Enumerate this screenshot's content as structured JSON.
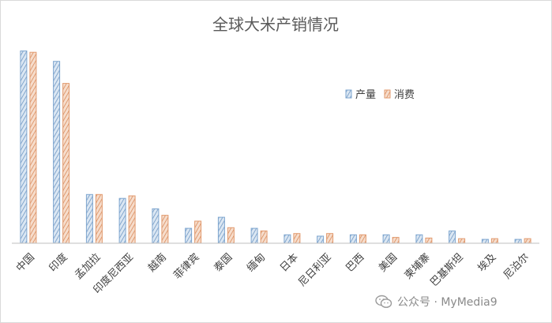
{
  "chart_data": {
    "type": "bar",
    "title": "全球大米产销情况",
    "xlabel": "",
    "ylabel": "",
    "ylim": [
      0,
      155
    ],
    "grid": false,
    "legend_position": "top-right",
    "categories": [
      "中国",
      "印度",
      "孟加拉",
      "印度尼西亚",
      "越南",
      "菲律宾",
      "泰国",
      "缅甸",
      "日本",
      "尼日利亚",
      "巴西",
      "美国",
      "柬埔寨",
      "巴基斯坦",
      "埃及",
      "尼泊尔"
    ],
    "series": [
      {
        "name": "产量",
        "color": "#7ea6cf",
        "values": [
          148,
          140,
          37.5,
          34.5,
          26.5,
          11.5,
          20,
          11.5,
          6.5,
          5.5,
          6.5,
          6.5,
          6.5,
          9.5,
          3,
          3
        ]
      },
      {
        "name": "消费",
        "color": "#e29a6e",
        "values": [
          147,
          123,
          37.5,
          36.5,
          21.5,
          17,
          12,
          9.5,
          7.5,
          7.5,
          6.5,
          4.5,
          4,
          3.5,
          3.5,
          3.5
        ]
      }
    ]
  },
  "watermark": {
    "text": "公众号 · MyMedia9",
    "icon": "wechat-icon"
  }
}
